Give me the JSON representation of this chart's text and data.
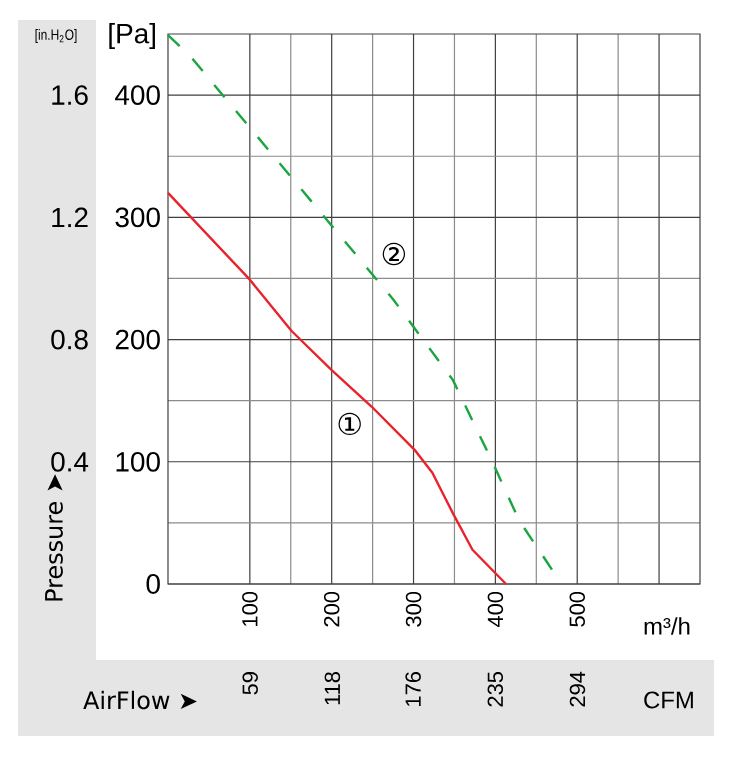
{
  "chart_data": {
    "type": "line",
    "xlabel": "m³/h",
    "x2label": "CFM",
    "ylabel": "[Pa]",
    "y2label": "[in.H$_{2}$O]",
    "xlim": [
      0,
      650
    ],
    "xticks": [
      100,
      200,
      300,
      400,
      500,
      {
        "value": 600,
        "label": null
      }
    ],
    "x2lim": [
      0,
      382
    ],
    "x2ticks": [
      59,
      118,
      176,
      235,
      294
    ],
    "ylim": [
      0,
      450
    ],
    "yticks": [
      0,
      100,
      200,
      300,
      400
    ],
    "y2lim": [
      0,
      1.8
    ],
    "y2ticks": [
      0.4,
      0.8,
      1.2,
      1.6
    ],
    "grid": true,
    "series": [
      {
        "color": "#e8232b",
        "line_style": "solid",
        "x": [
          0,
          100,
          151,
          200,
          249,
          301,
          323,
          348,
          372,
          413
        ],
        "values": [
          320,
          249,
          207,
          175,
          145,
          110,
          91,
          58,
          28,
          0
        ]
      },
      {
        "color": "#1aa541",
        "line_style": "dashed",
        "x": [
          0,
          27,
          275,
          348,
          397,
          429,
          473
        ],
        "values": [
          449,
          432,
          233,
          167,
          99,
          52,
          8
        ]
      }
    ],
    "annotations": [
      {
        "text": "①",
        "x": 222,
        "y": 131
      },
      {
        "text": "②",
        "x": 276,
        "y": 270
      },
      "Pressure ➤",
      "AirFlow ➤"
    ]
  }
}
